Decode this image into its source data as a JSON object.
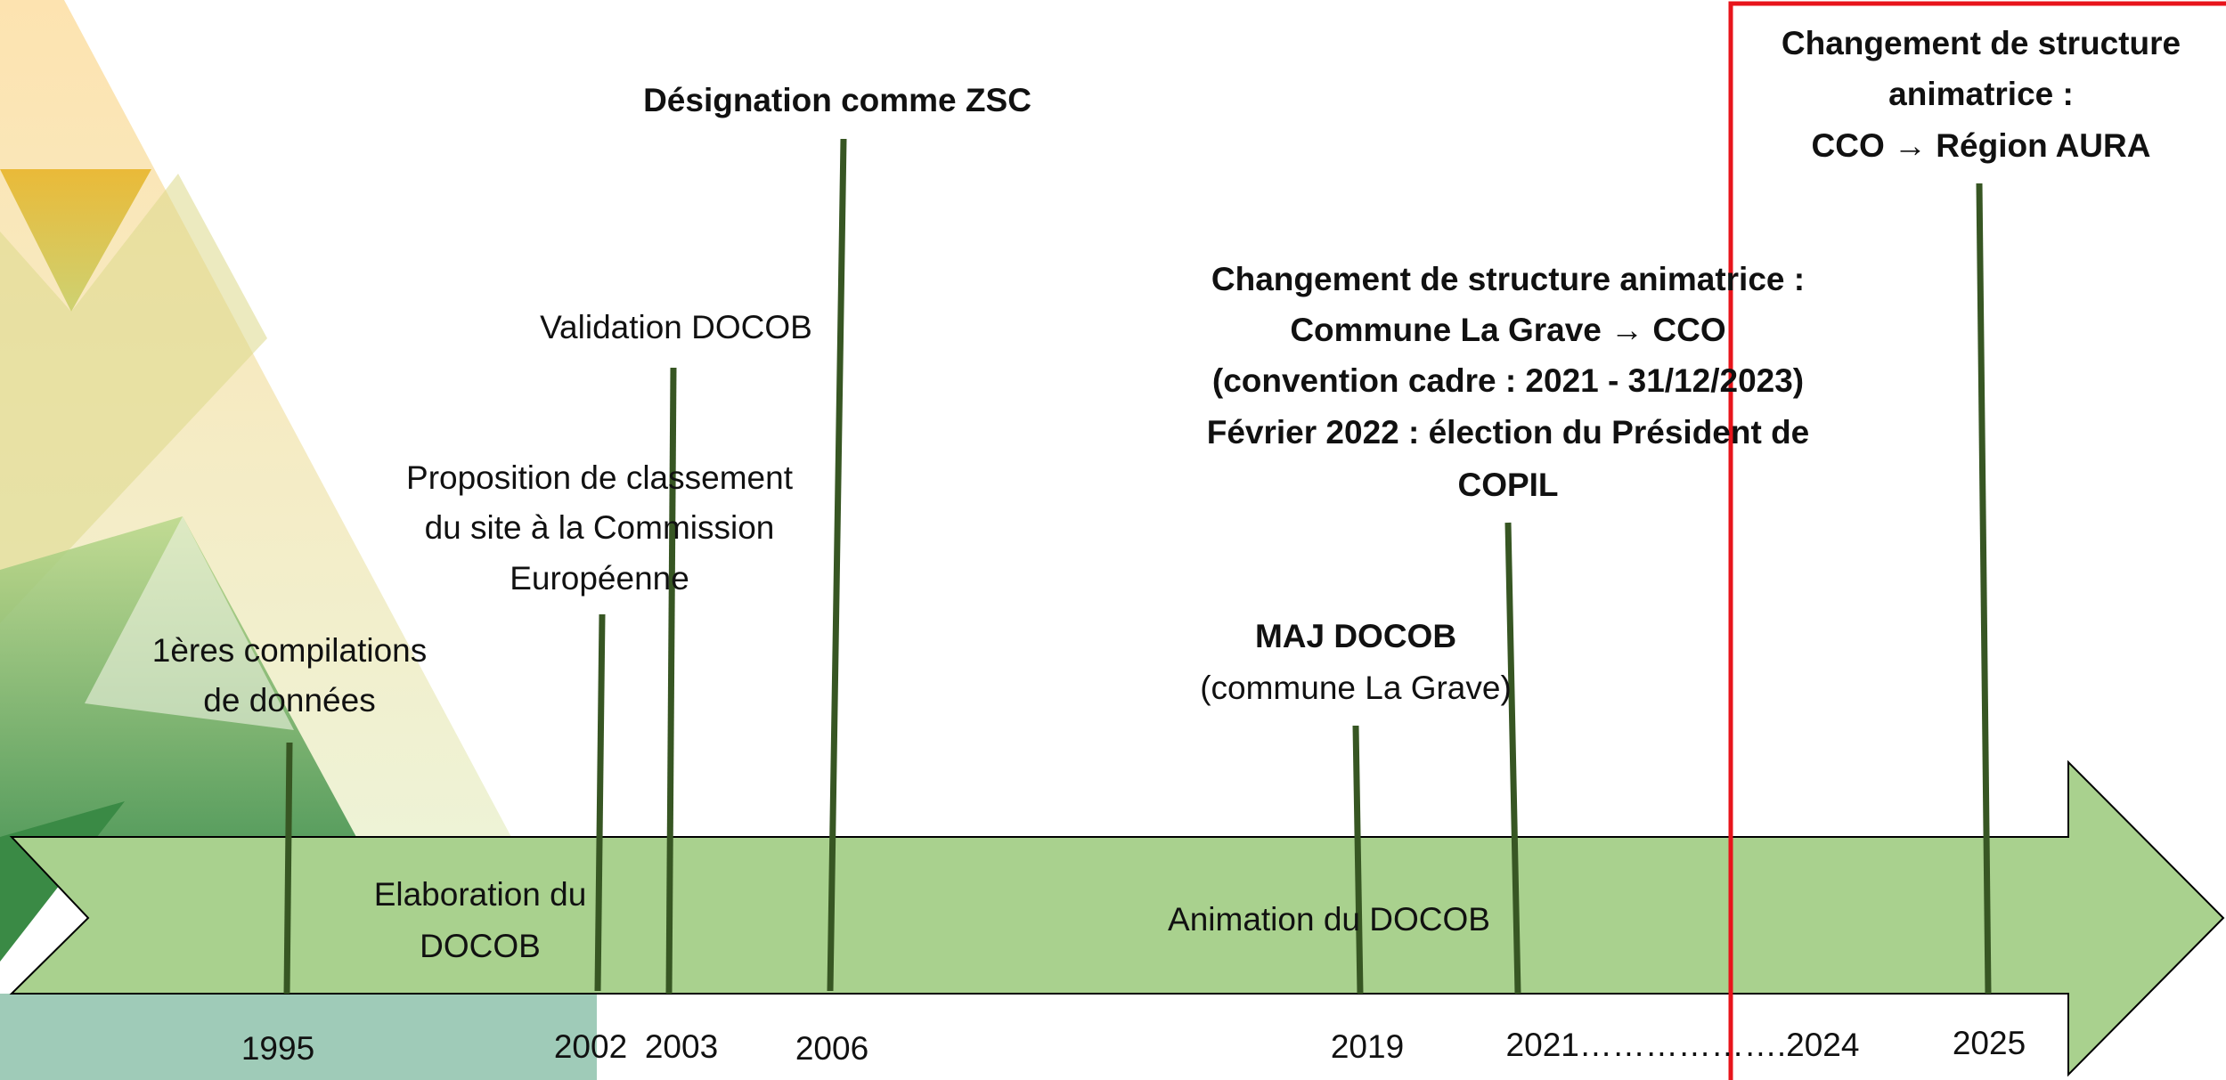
{
  "events": [
    {
      "lines": [
        "1ères compilations",
        "de données"
      ]
    },
    {
      "lines": [
        "Proposition de classement",
        "du site à la Commission",
        "Européenne"
      ]
    },
    {
      "lines": [
        "Validation DOCOB"
      ]
    },
    {
      "lines": [
        "Désignation comme ZSC"
      ]
    },
    {
      "lines": [
        "MAJ DOCOB",
        "(commune La Grave)"
      ]
    },
    {
      "lines": [
        "Changement de structure animatrice :",
        "Commune La Grave → CCO",
        "(convention cadre : 2021 - 31/12/2023)",
        "Février 2022 : élection du Président de",
        "COPIL"
      ]
    },
    {
      "lines": [
        "Changement de structure",
        "animatrice :",
        "CCO → Région AURA"
      ]
    }
  ],
  "phases": [
    {
      "lines": [
        "Elaboration du",
        "DOCOB"
      ]
    },
    {
      "lines": [
        "Animation du DOCOB"
      ]
    }
  ],
  "years": [
    "1995",
    "2002",
    "2003",
    "2006",
    "2019",
    "2021……………….2024",
    "2025"
  ]
}
